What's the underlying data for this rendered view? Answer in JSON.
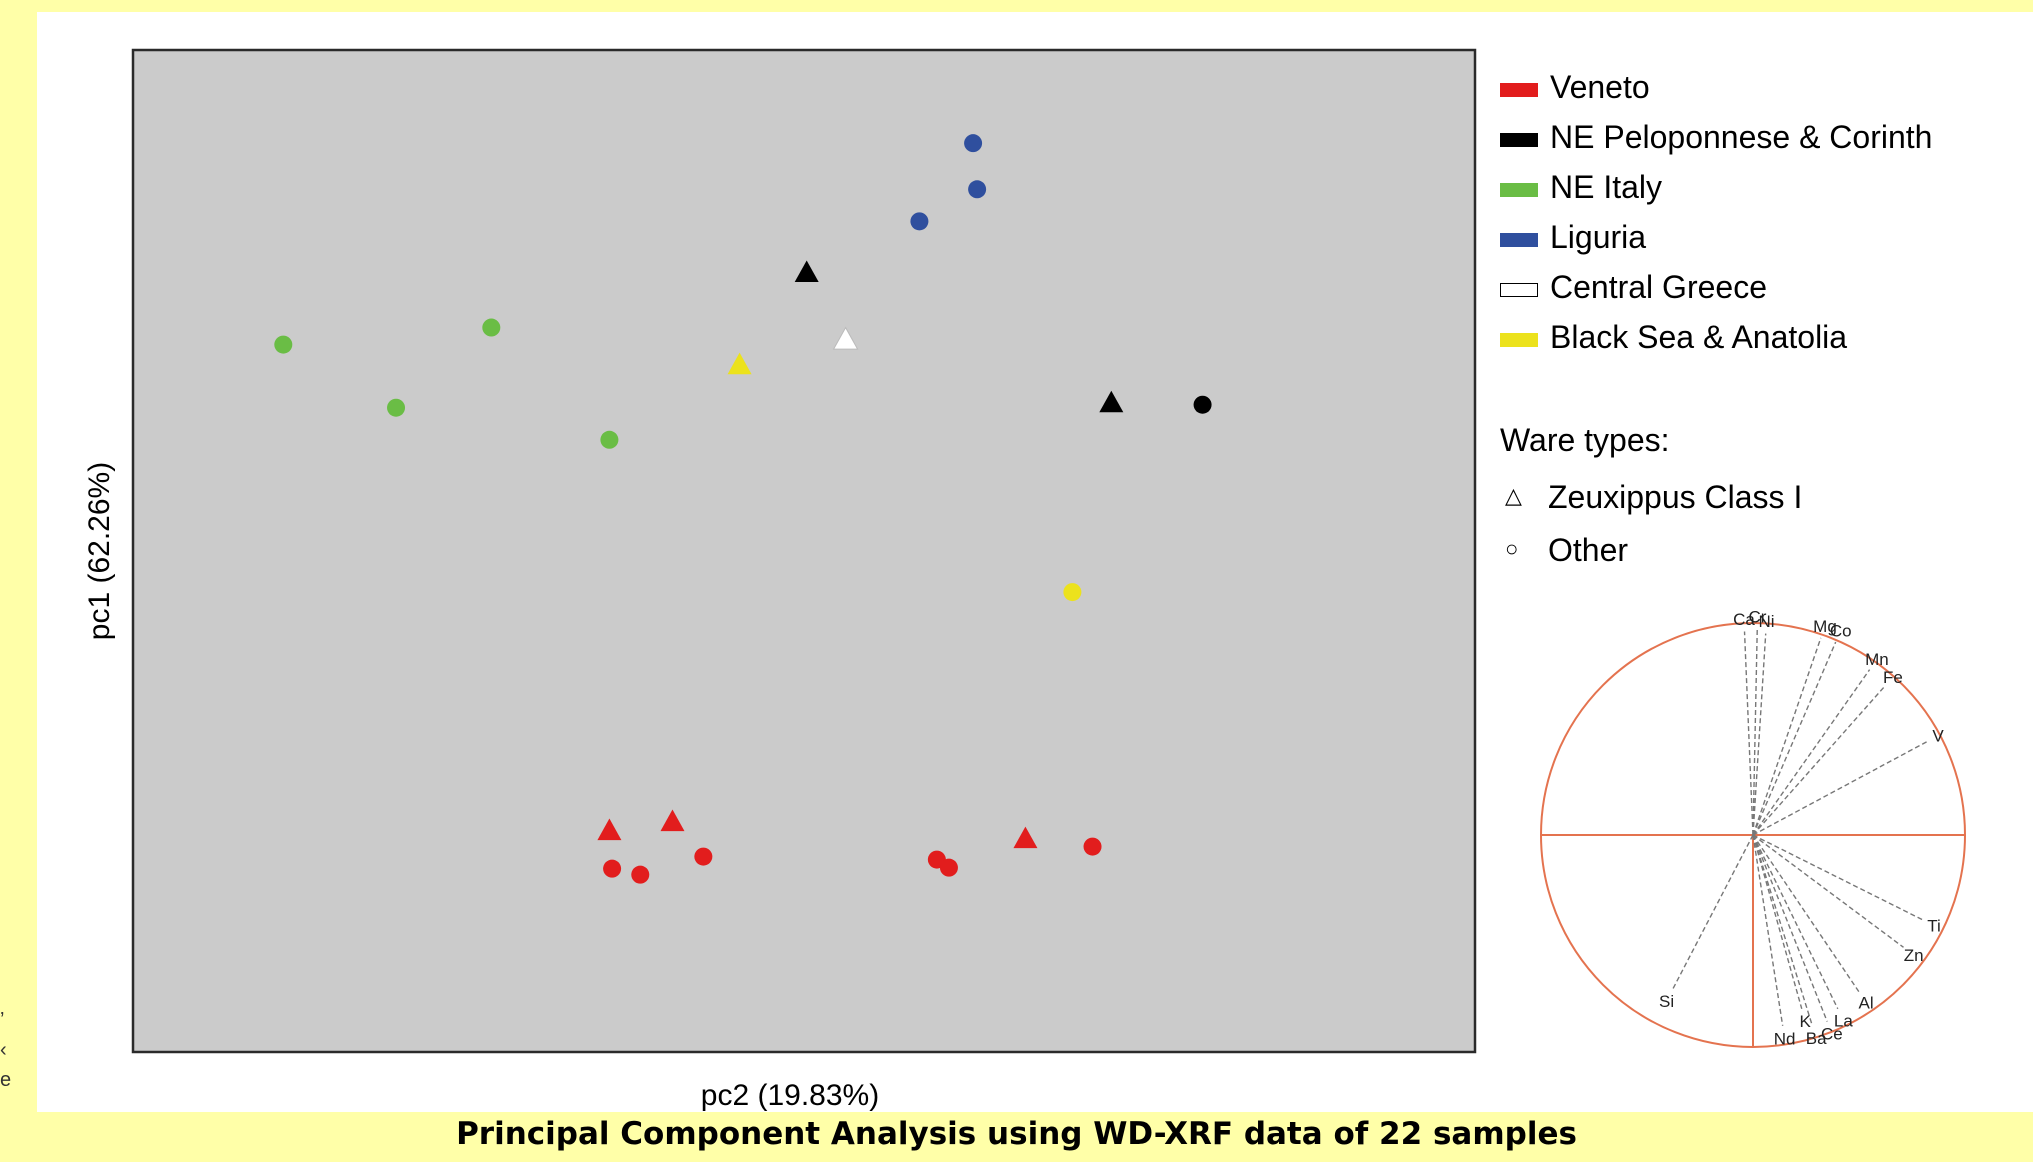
{
  "caption": "Principal Component Analysis using WD-XRF data of 22 samples",
  "chart_data": [
    {
      "type": "scatter",
      "xlabel": "pc2 (19.83%)",
      "ylabel": "pc1 (62.26%)",
      "background": "#cbcbcb",
      "grid": false,
      "legend_position": "right",
      "legend": {
        "regions": [
          {
            "name": "Veneto",
            "color": "#e21d1d"
          },
          {
            "name": "NE Peloponnese & Corinth",
            "color": "#000000"
          },
          {
            "name": "NE Italy",
            "color": "#6abd45"
          },
          {
            "name": "Liguria",
            "color": "#2f4f9e"
          },
          {
            "name": "Central Greece",
            "color": "#ffffff"
          },
          {
            "name": "Black Sea & Anatolia",
            "color": "#ece21c"
          }
        ],
        "ware_title": "Ware types:",
        "wares": [
          {
            "name": "Zeuxippus Class I",
            "symbol": "△"
          },
          {
            "name": "Other",
            "symbol": "○"
          }
        ]
      },
      "series": [
        {
          "name": "Veneto",
          "color": "#e21d1d",
          "points": [
            {
              "x": 0.355,
              "y": 0.221,
              "shape": "triangle"
            },
            {
              "x": 0.402,
              "y": 0.23,
              "shape": "triangle"
            },
            {
              "x": 0.665,
              "y": 0.213,
              "shape": "triangle"
            },
            {
              "x": 0.357,
              "y": 0.183,
              "shape": "circle"
            },
            {
              "x": 0.378,
              "y": 0.177,
              "shape": "circle"
            },
            {
              "x": 0.425,
              "y": 0.195,
              "shape": "circle"
            },
            {
              "x": 0.599,
              "y": 0.192,
              "shape": "circle"
            },
            {
              "x": 0.608,
              "y": 0.184,
              "shape": "circle"
            },
            {
              "x": 0.715,
              "y": 0.205,
              "shape": "circle"
            }
          ]
        },
        {
          "name": "NE Peloponnese & Corinth",
          "color": "#000000",
          "points": [
            {
              "x": 0.502,
              "y": 0.778,
              "shape": "triangle"
            },
            {
              "x": 0.729,
              "y": 0.648,
              "shape": "triangle"
            },
            {
              "x": 0.797,
              "y": 0.646,
              "shape": "circle"
            }
          ]
        },
        {
          "name": "NE Italy",
          "color": "#6abd45",
          "points": [
            {
              "x": 0.112,
              "y": 0.706,
              "shape": "circle"
            },
            {
              "x": 0.267,
              "y": 0.723,
              "shape": "circle"
            },
            {
              "x": 0.196,
              "y": 0.643,
              "shape": "circle"
            },
            {
              "x": 0.355,
              "y": 0.611,
              "shape": "circle"
            }
          ]
        },
        {
          "name": "Liguria",
          "color": "#2f4f9e",
          "points": [
            {
              "x": 0.626,
              "y": 0.907,
              "shape": "circle"
            },
            {
              "x": 0.629,
              "y": 0.861,
              "shape": "circle"
            },
            {
              "x": 0.586,
              "y": 0.829,
              "shape": "circle"
            }
          ]
        },
        {
          "name": "Central Greece",
          "color": "#ffffff",
          "points": [
            {
              "x": 0.531,
              "y": 0.711,
              "shape": "triangle"
            }
          ]
        },
        {
          "name": "Black Sea & Anatolia",
          "color": "#ece21c",
          "points": [
            {
              "x": 0.452,
              "y": 0.686,
              "shape": "triangle"
            },
            {
              "x": 0.7,
              "y": 0.459,
              "shape": "circle"
            }
          ]
        }
      ]
    },
    {
      "type": "scatter",
      "subtype": "correlation-circle",
      "xlim": [
        -1,
        1
      ],
      "ylim": [
        -1,
        1
      ],
      "circle_color": "#e4734f",
      "loadings": [
        {
          "label": "Ca",
          "x": -0.04,
          "y": 0.96
        },
        {
          "label": "Cr",
          "x": 0.02,
          "y": 0.97
        },
        {
          "label": "Ni",
          "x": 0.06,
          "y": 0.95
        },
        {
          "label": "Mg",
          "x": 0.32,
          "y": 0.93
        },
        {
          "label": "Co",
          "x": 0.39,
          "y": 0.91
        },
        {
          "label": "Mn",
          "x": 0.55,
          "y": 0.78
        },
        {
          "label": "Fe",
          "x": 0.62,
          "y": 0.7
        },
        {
          "label": "V",
          "x": 0.82,
          "y": 0.44
        },
        {
          "label": "Ti",
          "x": 0.8,
          "y": -0.4
        },
        {
          "label": "Zn",
          "x": 0.71,
          "y": -0.53
        },
        {
          "label": "Al",
          "x": 0.5,
          "y": -0.74
        },
        {
          "label": "La",
          "x": 0.4,
          "y": -0.82
        },
        {
          "label": "Ce",
          "x": 0.35,
          "y": -0.88
        },
        {
          "label": "Ba",
          "x": 0.28,
          "y": -0.9
        },
        {
          "label": "K",
          "x": 0.23,
          "y": -0.82
        },
        {
          "label": "Nd",
          "x": 0.14,
          "y": -0.9
        },
        {
          "label": "Si",
          "x": -0.38,
          "y": -0.73
        }
      ]
    }
  ]
}
